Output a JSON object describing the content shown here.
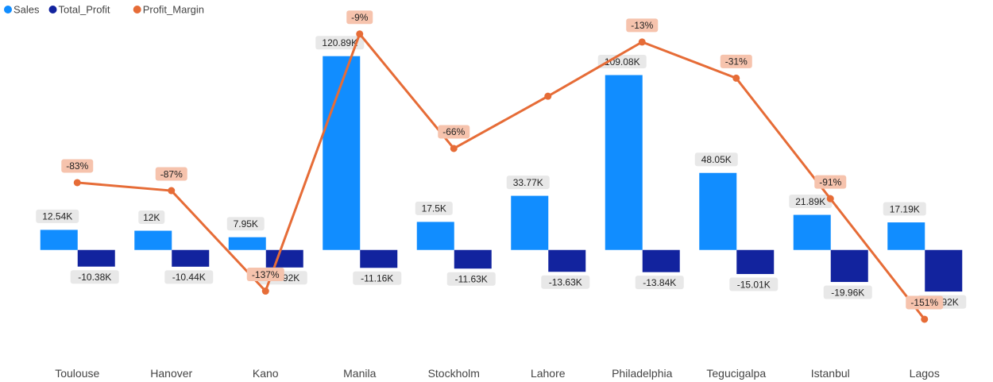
{
  "chart_data": {
    "type": "bar",
    "legend": {
      "position": "top-left",
      "items": [
        {
          "name": "Sales",
          "color": "#118dff"
        },
        {
          "name": "Total_Profit",
          "color": "#12239e"
        },
        {
          "name": "Profit_Margin",
          "color": "#e66c37"
        }
      ]
    },
    "categories": [
      "Toulouse",
      "Hanover",
      "Kano",
      "Manila",
      "Stockholm",
      "Lahore",
      "Philadelphia",
      "Tegucigalpa",
      "Istanbul",
      "Lagos"
    ],
    "series": [
      {
        "name": "Sales",
        "type": "bar",
        "color": "#118dff",
        "values": [
          12540,
          12000,
          7950,
          120890,
          17500,
          33770,
          109080,
          48050,
          21890,
          17190
        ],
        "labels": [
          "12.54K",
          "12K",
          "7.95K",
          "120.89K",
          "17.5K",
          "33.77K",
          "109.08K",
          "48.05K",
          "21.89K",
          "17.19K"
        ]
      },
      {
        "name": "Total_Profit",
        "type": "bar",
        "color": "#12239e",
        "values": [
          -10380,
          -10440,
          -10920,
          -11160,
          -11630,
          -13630,
          -13840,
          -15010,
          -19960,
          -25920
        ],
        "labels": [
          "-10.38K",
          "-10.44K",
          "-10.92K",
          "-11.16K",
          "-11.63K",
          "-13.63K",
          "-13.84K",
          "-15.01K",
          "-19.96K",
          "-25.92K"
        ]
      },
      {
        "name": "Profit_Margin",
        "type": "line",
        "color": "#e66c37",
        "values": [
          -83,
          -87,
          -137,
          -9,
          -66,
          -40,
          -13,
          -31,
          -91,
          -151
        ],
        "labels": [
          "-83%",
          "-87%",
          "-137%",
          "-9%",
          "-66%",
          "",
          "-13%",
          "-31%",
          "-91%",
          "-151%"
        ]
      }
    ],
    "bar_axis": {
      "ylim": [
        -67000,
        146000
      ]
    },
    "line_axis": {
      "ylim": [
        -170,
        0
      ]
    },
    "grid": false
  }
}
